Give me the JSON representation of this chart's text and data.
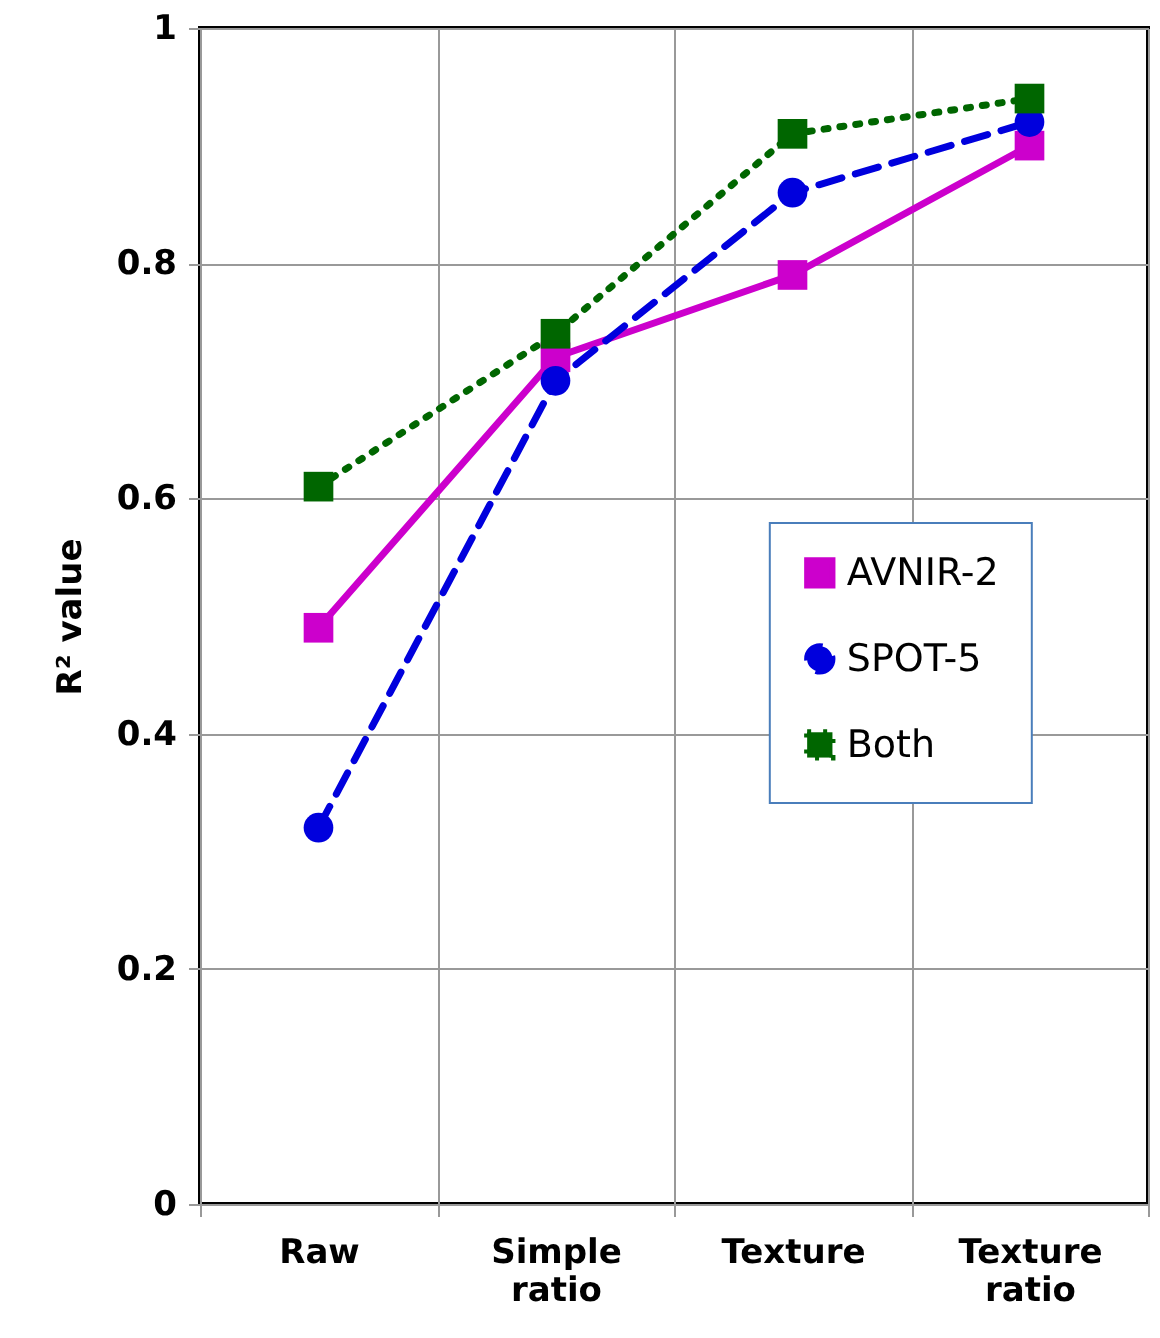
{
  "chart_data": {
    "type": "line",
    "ylabel": "R² value",
    "categories": [
      "Raw",
      "Simple ratio",
      "Texture",
      "Texture ratio"
    ],
    "series": [
      {
        "name": "AVNIR-2",
        "color": "#cc00cc",
        "marker": "square",
        "line_style": "solid",
        "values": [
          0.49,
          0.72,
          0.79,
          0.9
        ]
      },
      {
        "name": "SPOT-5",
        "color": "#0000dd",
        "marker": "circle",
        "line_style": "dashed",
        "values": [
          0.32,
          0.7,
          0.86,
          0.92
        ]
      },
      {
        "name": "Both",
        "color": "#006600",
        "marker": "square",
        "line_style": "dotted",
        "values": [
          0.61,
          0.74,
          0.91,
          0.94
        ]
      }
    ],
    "ylim": [
      0,
      1
    ],
    "yticks": [
      0,
      0.2,
      0.4,
      0.6,
      0.8,
      1
    ],
    "grid": true,
    "legend": "right"
  }
}
